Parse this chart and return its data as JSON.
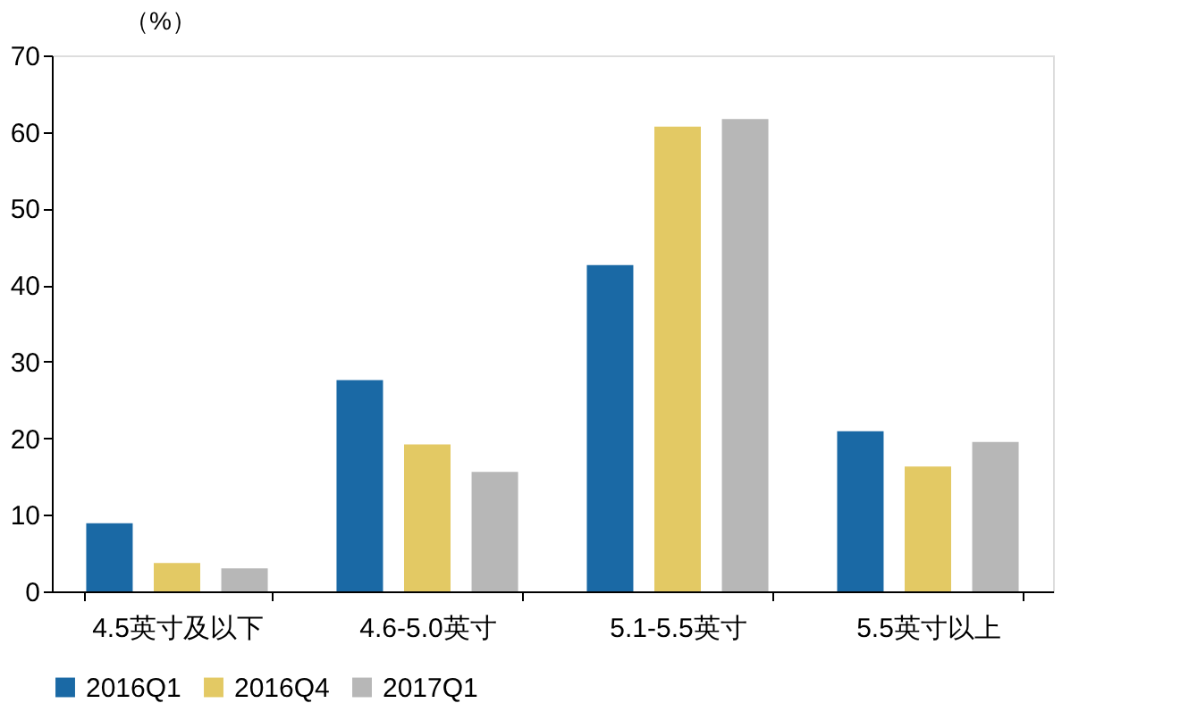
{
  "chart_data": {
    "type": "bar",
    "ylabel": "（%）",
    "categories": [
      "4.5英寸及以下",
      "4.6-5.0英寸",
      "5.1-5.5英寸",
      "5.5英寸以上"
    ],
    "series": [
      {
        "name": "2016Q1",
        "color": "#1a69a5",
        "values": [
          8.9,
          27.6,
          42.6,
          20.9
        ]
      },
      {
        "name": "2016Q4",
        "color": "#e3c964",
        "values": [
          3.7,
          19.2,
          60.7,
          16.3
        ]
      },
      {
        "name": "2017Q1",
        "color": "#b7b7b7",
        "values": [
          3.0,
          15.6,
          61.7,
          19.5
        ]
      }
    ],
    "ylim": [
      0,
      70
    ],
    "yticks": [
      0,
      10,
      20,
      30,
      40,
      50,
      60,
      70
    ],
    "grid": false,
    "legend": "bottom"
  }
}
